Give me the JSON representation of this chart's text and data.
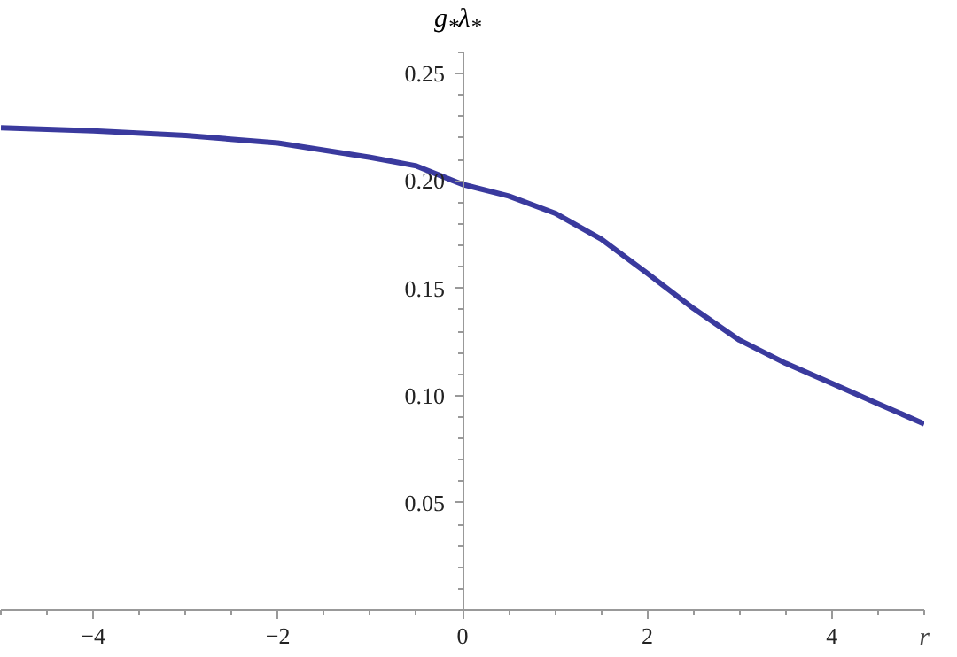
{
  "chart_data": {
    "type": "line",
    "xlabel": "r",
    "ylabel": "g$_{*}$λ$_{*}$",
    "x": [
      -5,
      -4,
      -3,
      -2,
      -1,
      -0.5,
      0,
      0.5,
      1,
      1.5,
      2,
      2.5,
      3,
      3.5,
      4,
      4.5,
      5
    ],
    "series": [
      {
        "color": "#3a3a9e",
        "values": [
          0.2248,
          0.2234,
          0.2212,
          0.2177,
          0.211,
          0.207,
          0.1984,
          0.193,
          0.185,
          0.173,
          0.157,
          0.1406,
          0.1258,
          0.115,
          0.1056,
          0.0962,
          0.0868
        ]
      }
    ],
    "xlim": [
      -5,
      5
    ],
    "ylim": [
      0,
      0.26
    ],
    "xticks": [
      -4,
      -2,
      0,
      2,
      4
    ],
    "yticks": [
      0.05,
      {
        "value": 0.1,
        "label": "0.10"
      },
      0.15,
      {
        "value": 0.2,
        "label": "0.20"
      },
      0.25
    ],
    "grid": false,
    "marker": "none",
    "line_style": "solid"
  }
}
